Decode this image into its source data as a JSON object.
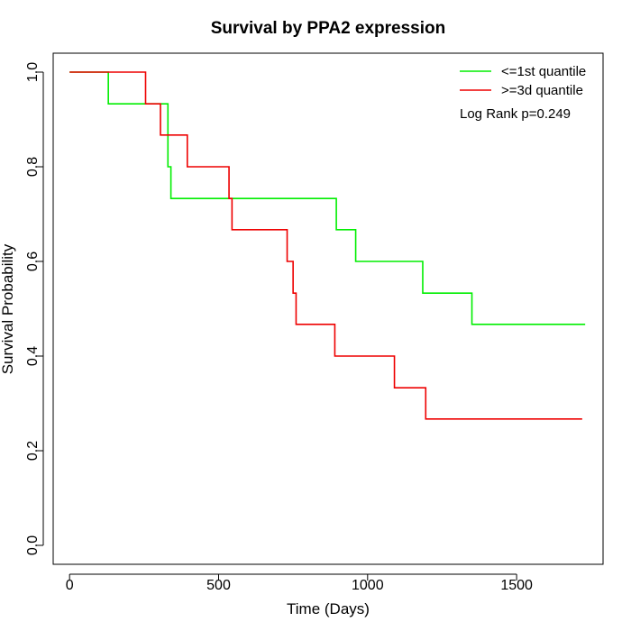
{
  "chart_data": {
    "type": "line",
    "title": "Survival by PPA2 expression",
    "xlabel": "Time (Days)",
    "ylabel": "Survival Probability",
    "xlim": [
      -55,
      1790
    ],
    "ylim": [
      -0.04,
      1.04
    ],
    "xticks": [
      0,
      500,
      1000,
      1500
    ],
    "yticks": [
      0.0,
      0.2,
      0.4,
      0.6,
      0.8,
      1.0
    ],
    "xtick_labels": [
      "0",
      "500",
      "1000",
      "1500"
    ],
    "ytick_labels": [
      "0.0",
      "0.2",
      "0.4",
      "0.6",
      "0.8",
      "1.0"
    ],
    "annotation": "Log Rank p=0.249",
    "legend_position": "top-right",
    "grid": false,
    "series": [
      {
        "name": "<=1st quantile",
        "color": "#00ee00",
        "step": true,
        "x": [
          0,
          130,
          330,
          340,
          895,
          960,
          1185,
          1350,
          1730
        ],
        "y": [
          1.0,
          0.933,
          0.8,
          0.733,
          0.667,
          0.6,
          0.533,
          0.467,
          0.467
        ]
      },
      {
        "name": ">=3d quantile",
        "color": "#ee0000",
        "step": true,
        "x": [
          0,
          255,
          305,
          395,
          535,
          545,
          730,
          750,
          760,
          890,
          1090,
          1195,
          1720
        ],
        "y": [
          1.0,
          0.933,
          0.867,
          0.8,
          0.733,
          0.667,
          0.6,
          0.533,
          0.467,
          0.4,
          0.333,
          0.267,
          0.267
        ]
      }
    ]
  }
}
